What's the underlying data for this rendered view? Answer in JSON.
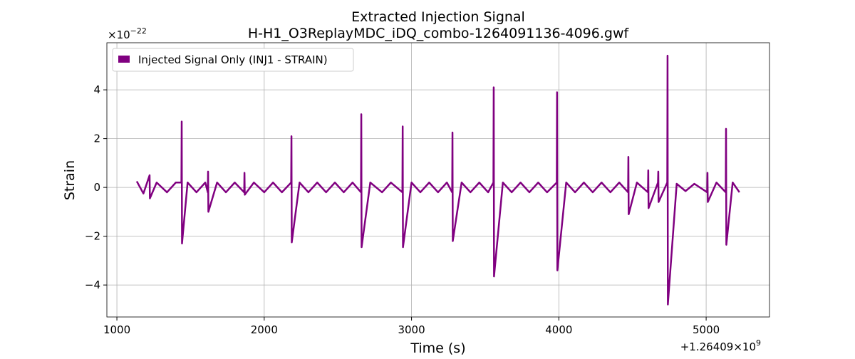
{
  "chart_data": {
    "type": "line",
    "title": "Extracted Injection Signal",
    "subtitle": "H-H1_O3ReplayMDC_iDQ_combo-1264091136-4096.gwf",
    "x_label": "Time (s)",
    "y_label": "Strain",
    "y_offset": {
      "base": "×10",
      "exponent": "−22"
    },
    "x_offset": {
      "base": "+1.26409×10",
      "exponent": "9"
    },
    "x": [
      1135,
      1180,
      1222,
      1224,
      1270,
      1340,
      1400,
      1438,
      1440,
      1442,
      1480,
      1540,
      1600,
      1617,
      1619,
      1621,
      1680,
      1740,
      1800,
      1864,
      1866,
      1868,
      1930,
      2000,
      2060,
      2120,
      2183,
      2185,
      2187,
      2240,
      2300,
      2360,
      2420,
      2480,
      2540,
      2600,
      2657,
      2659,
      2661,
      2720,
      2800,
      2860,
      2938,
      2940,
      2942,
      3000,
      3060,
      3120,
      3180,
      3240,
      3276,
      3278,
      3280,
      3340,
      3400,
      3460,
      3520,
      3556,
      3558,
      3560,
      3620,
      3680,
      3740,
      3800,
      3860,
      3920,
      3986,
      3988,
      3990,
      4050,
      4110,
      4170,
      4230,
      4290,
      4350,
      4410,
      4470,
      4472,
      4474,
      4530,
      4605,
      4607,
      4609,
      4673,
      4675,
      4677,
      4736,
      4738,
      4740,
      4800,
      4860,
      4920,
      5007,
      5009,
      5011,
      5070,
      5133,
      5135,
      5137,
      5180,
      5226
    ],
    "series": [
      {
        "name": "Injected Signal Only (INJ1 - STRAIN)",
        "color": "#800080",
        "values": [
          0.25,
          -0.25,
          0.5,
          -0.45,
          0.2,
          -0.2,
          0.2,
          0.2,
          2.7,
          -2.3,
          0.2,
          -0.2,
          0.2,
          -0.2,
          0.65,
          -1.0,
          0.2,
          -0.2,
          0.2,
          -0.2,
          0.6,
          -0.3,
          0.2,
          -0.2,
          0.2,
          -0.2,
          0.2,
          2.1,
          -2.25,
          0.2,
          -0.2,
          0.2,
          -0.2,
          0.2,
          -0.2,
          0.2,
          -0.2,
          3.0,
          -2.45,
          0.2,
          -0.2,
          0.2,
          -0.2,
          2.5,
          -2.45,
          0.2,
          -0.2,
          0.2,
          -0.2,
          0.2,
          -0.2,
          2.25,
          -2.2,
          0.2,
          -0.2,
          0.2,
          -0.2,
          0.2,
          4.1,
          -3.65,
          0.2,
          -0.2,
          0.2,
          -0.2,
          0.2,
          -0.2,
          0.2,
          3.9,
          -3.4,
          0.2,
          -0.2,
          0.2,
          -0.2,
          0.2,
          -0.2,
          0.2,
          -0.2,
          1.25,
          -1.1,
          0.2,
          -0.2,
          0.7,
          -0.85,
          0.2,
          0.65,
          -0.6,
          0.2,
          5.4,
          -4.8,
          0.15,
          -0.15,
          0.15,
          -0.2,
          0.6,
          -0.6,
          0.2,
          -0.2,
          2.4,
          -2.35,
          0.2,
          -0.2
        ]
      }
    ],
    "xlim": [
      932,
      5430
    ],
    "ylim": [
      -5.31,
      5.93
    ],
    "xticks": [
      1000,
      2000,
      3000,
      4000,
      5000
    ],
    "yticks": [
      {
        "value": -4,
        "label": "−4"
      },
      {
        "value": -2,
        "label": "−2"
      },
      0,
      2,
      4
    ],
    "grid": true,
    "legend": "upper left"
  }
}
